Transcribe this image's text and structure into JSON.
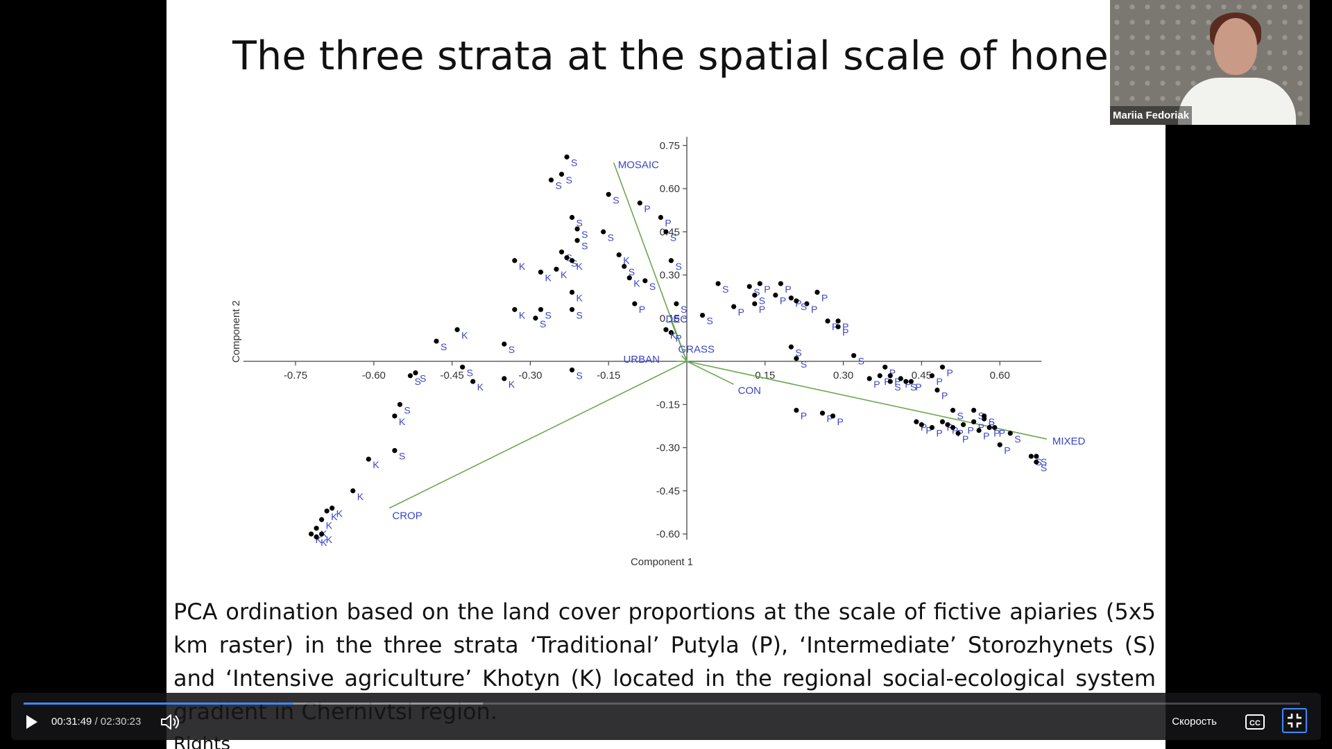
{
  "slide": {
    "title": "The three strata at the spatial scale of honey bee",
    "caption": "PCA ordination based on the land cover proportions at the scale of fictive apiaries (5x5 km raster) in the three strata ‘Traditional’ Putyla (P), ‘Intermediate’ Storozhynets (S) and ‘Intensive agriculture’ Khotyn (K) located in the regional social-ecological system gradient in Chernivtsi region.",
    "caption_next": "Rights"
  },
  "chart_data": {
    "type": "scatter",
    "title": "",
    "xlabel": "Component 1",
    "ylabel": "Component 2",
    "xlim": [
      -0.85,
      0.68
    ],
    "ylim": [
      -0.62,
      0.78
    ],
    "xticks": [
      -0.75,
      -0.6,
      -0.45,
      -0.3,
      -0.15,
      0.15,
      0.3,
      0.45,
      0.6
    ],
    "xtick_labels": [
      "-0.75",
      "-0.60",
      "-0.45",
      "-0.30",
      "-0.15",
      "0.15",
      "0.30",
      "0.45",
      "0.60"
    ],
    "yticks": [
      0.75,
      0.6,
      0.45,
      0.3,
      0.15,
      -0.15,
      -0.3,
      -0.45,
      -0.6
    ],
    "ytick_labels": [
      "0.75",
      "0.60",
      "0.45",
      "0.30",
      "0.15",
      "-0.15",
      "-0.30",
      "-0.45",
      "-0.60"
    ],
    "point_color": "#000000",
    "label_color": "#3a44c8",
    "vector_color": "#6aa84f",
    "vectors": [
      {
        "name": "MOSAIC",
        "x": -0.14,
        "y": 0.69
      },
      {
        "name": "DEC",
        "x": -0.03,
        "y": 0.14
      },
      {
        "name": "GRASS",
        "x": -0.01,
        "y": 0.02
      },
      {
        "name": "URBAN",
        "x": -0.02,
        "y": 0.0
      },
      {
        "name": "CON",
        "x": 0.09,
        "y": -0.08
      },
      {
        "name": "MIXED",
        "x": 0.69,
        "y": -0.27
      },
      {
        "name": "CROP",
        "x": -0.57,
        "y": -0.51
      }
    ],
    "series": [
      {
        "name": "P",
        "points": [
          [
            -0.09,
            0.55
          ],
          [
            -0.05,
            0.5
          ],
          [
            0.09,
            0.19
          ],
          [
            0.13,
            0.2
          ],
          [
            0.17,
            0.23
          ],
          [
            0.2,
            0.22
          ],
          [
            0.23,
            0.2
          ],
          [
            0.14,
            0.27
          ],
          [
            0.18,
            0.27
          ],
          [
            0.25,
            0.24
          ],
          [
            0.27,
            0.14
          ],
          [
            0.29,
            0.14
          ],
          [
            0.29,
            0.12
          ],
          [
            -0.1,
            0.2
          ],
          [
            -0.03,
            0.1
          ],
          [
            0.35,
            -0.06
          ],
          [
            0.37,
            -0.05
          ],
          [
            0.38,
            -0.02
          ],
          [
            0.39,
            -0.05
          ],
          [
            0.41,
            -0.06
          ],
          [
            0.43,
            -0.07
          ],
          [
            0.47,
            -0.05
          ],
          [
            0.48,
            -0.1
          ],
          [
            0.49,
            -0.02
          ],
          [
            0.21,
            -0.17
          ],
          [
            0.26,
            -0.18
          ],
          [
            0.28,
            -0.19
          ],
          [
            0.44,
            -0.21
          ],
          [
            0.45,
            -0.22
          ],
          [
            0.47,
            -0.23
          ],
          [
            0.49,
            -0.21
          ],
          [
            0.5,
            -0.22
          ],
          [
            0.51,
            -0.23
          ],
          [
            0.52,
            -0.25
          ],
          [
            0.53,
            -0.22
          ],
          [
            0.55,
            -0.21
          ],
          [
            0.56,
            -0.24
          ],
          [
            0.57,
            -0.2
          ],
          [
            0.58,
            -0.23
          ],
          [
            0.59,
            -0.23
          ],
          [
            0.6,
            -0.29
          ]
        ]
      },
      {
        "name": "S",
        "points": [
          [
            -0.23,
            0.71
          ],
          [
            -0.24,
            0.65
          ],
          [
            -0.26,
            0.63
          ],
          [
            -0.15,
            0.58
          ],
          [
            -0.22,
            0.5
          ],
          [
            -0.21,
            0.46
          ],
          [
            -0.21,
            0.42
          ],
          [
            -0.16,
            0.45
          ],
          [
            -0.04,
            0.45
          ],
          [
            -0.24,
            0.38
          ],
          [
            -0.23,
            0.36
          ],
          [
            -0.12,
            0.33
          ],
          [
            -0.03,
            0.35
          ],
          [
            -0.08,
            0.28
          ],
          [
            0.06,
            0.27
          ],
          [
            0.12,
            0.26
          ],
          [
            0.13,
            0.23
          ],
          [
            0.21,
            0.21
          ],
          [
            -0.22,
            0.18
          ],
          [
            -0.02,
            0.2
          ],
          [
            -0.28,
            0.18
          ],
          [
            -0.29,
            0.15
          ],
          [
            0.03,
            0.16
          ],
          [
            -0.48,
            0.07
          ],
          [
            -0.35,
            0.06
          ],
          [
            0.2,
            0.05
          ],
          [
            0.21,
            0.01
          ],
          [
            0.32,
            0.02
          ],
          [
            -0.43,
            -0.02
          ],
          [
            -0.22,
            -0.03
          ],
          [
            -0.52,
            -0.04
          ],
          [
            -0.53,
            -0.05
          ],
          [
            0.39,
            -0.07
          ],
          [
            0.42,
            -0.07
          ],
          [
            0.51,
            -0.17
          ],
          [
            0.55,
            -0.17
          ],
          [
            0.57,
            -0.19
          ],
          [
            0.62,
            -0.25
          ],
          [
            0.66,
            -0.33
          ],
          [
            0.67,
            -0.33
          ],
          [
            0.67,
            -0.35
          ],
          [
            -0.55,
            -0.15
          ],
          [
            -0.56,
            -0.31
          ]
        ]
      },
      {
        "name": "K",
        "points": [
          [
            -0.33,
            0.35
          ],
          [
            -0.28,
            0.31
          ],
          [
            -0.25,
            0.32
          ],
          [
            -0.22,
            0.35
          ],
          [
            -0.13,
            0.37
          ],
          [
            -0.11,
            0.29
          ],
          [
            -0.22,
            0.24
          ],
          [
            -0.33,
            0.18
          ],
          [
            -0.04,
            0.11
          ],
          [
            -0.44,
            0.11
          ],
          [
            -0.35,
            -0.06
          ],
          [
            -0.41,
            -0.07
          ],
          [
            -0.56,
            -0.19
          ],
          [
            -0.61,
            -0.34
          ],
          [
            -0.64,
            -0.45
          ],
          [
            -0.68,
            -0.51
          ],
          [
            -0.69,
            -0.52
          ],
          [
            -0.7,
            -0.55
          ],
          [
            -0.71,
            -0.58
          ],
          [
            -0.72,
            -0.6
          ],
          [
            -0.7,
            -0.6
          ],
          [
            -0.71,
            -0.61
          ]
        ]
      }
    ]
  },
  "webcam": {
    "participant_name": "Mariia Fedoriak"
  },
  "player": {
    "current_time": "00:31:49",
    "separator": "/",
    "total_time": "02:30:23",
    "speed_label": "Скорость",
    "progress_fraction": 0.2116,
    "buffered_fraction": 0.36,
    "accent_color": "#3d8bff",
    "icons": [
      "play-icon",
      "volume-icon",
      "captions-icon",
      "exit-fullscreen-icon"
    ]
  }
}
